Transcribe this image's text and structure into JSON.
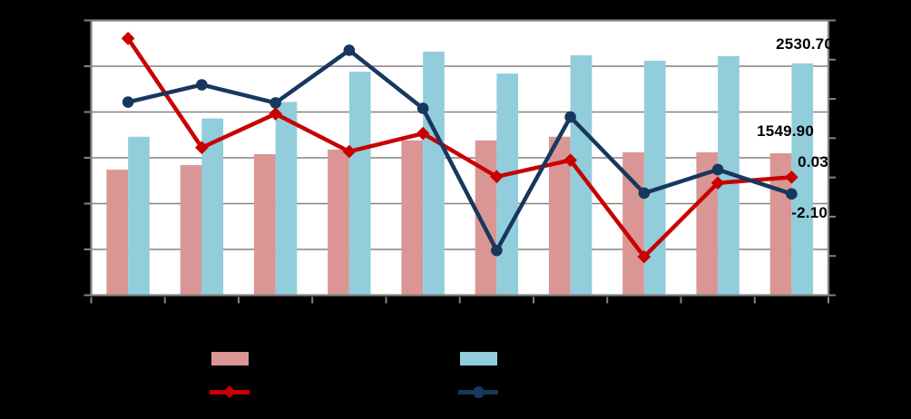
{
  "chart_data": {
    "type": "combo-bar-line",
    "num_categories": 10,
    "page_bg": "#000000",
    "plot_bg": "#ffffff",
    "grid_color": "#828282",
    "series": [
      {
        "id": "bars-pink",
        "type": "bar",
        "color": "#D99694",
        "values": [
          1370,
          1420,
          1540,
          1590,
          1690,
          1690,
          1730,
          1560,
          1560,
          1549.9
        ]
      },
      {
        "id": "bars-blue",
        "type": "bar",
        "color": "#92CDDC",
        "values": [
          1730,
          1930,
          2110,
          2440,
          2660,
          2420,
          2620,
          2560,
          2610,
          2530.7
        ]
      },
      {
        "id": "line-red",
        "type": "line",
        "marker": "diamond",
        "color": "#C80000",
        "values": [
          17.7,
          3.8,
          8.1,
          3.3,
          5.6,
          0.1,
          2.2,
          -10.1,
          -0.7,
          0.03
        ]
      },
      {
        "id": "line-navy",
        "type": "line",
        "marker": "circle",
        "color": "#17375E",
        "values": [
          9.6,
          11.8,
          9.5,
          16.2,
          8.8,
          -9.3,
          7.7,
          -2.0,
          1.0,
          -2.1
        ]
      }
    ],
    "left_axis": {
      "min": 0,
      "max": 3000,
      "step": 500,
      "labels_visible": false
    },
    "right_axis": {
      "min": -15,
      "max": 20,
      "step": 5,
      "labels_visible": false
    },
    "x_axis": {
      "tick_count": 11,
      "labels_visible": false
    },
    "grid": "horizontal-only",
    "legend": {
      "position": "bottom-two-columns",
      "labels_visible": false,
      "entries": [
        {
          "swatch": "bar",
          "series": "bars-pink"
        },
        {
          "swatch": "bar",
          "series": "bars-blue"
        },
        {
          "swatch": "line-diamond",
          "series": "line-red"
        },
        {
          "swatch": "line-circle",
          "series": "line-navy"
        }
      ]
    },
    "data_labels": [
      {
        "text": "2530.70",
        "series": "bars-blue",
        "point": 10
      },
      {
        "text": "1549.90",
        "series": "bars-pink",
        "point": 10
      },
      {
        "text": "0.03",
        "series": "line-red",
        "point": 10
      },
      {
        "text": "-2.10",
        "series": "line-navy",
        "point": 10
      }
    ]
  }
}
